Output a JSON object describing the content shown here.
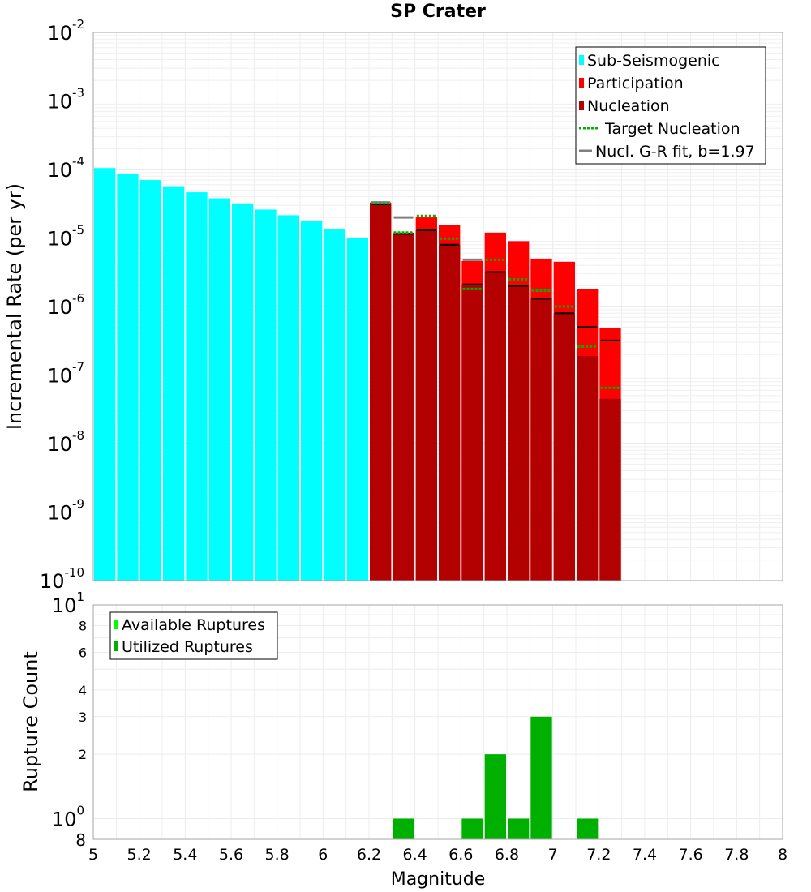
{
  "chart_data": [
    {
      "type": "bar",
      "title": "SP Crater",
      "xlabel": "",
      "ylabel": "Incremental Rate (per yr)",
      "yscale": "log",
      "xlim": [
        5,
        8
      ],
      "ylim": [
        1e-10,
        0.01
      ],
      "y_tick_bases": [
        "10",
        "10",
        "10",
        "10",
        "10",
        "10",
        "10",
        "10",
        "10"
      ],
      "y_tick_exponents": [
        "-2",
        "-3",
        "-4",
        "-5",
        "-6",
        "-7",
        "-8",
        "-9",
        "-10"
      ],
      "y_tick_values": [
        0.01,
        0.001,
        0.0001,
        1e-05,
        1e-06,
        1e-07,
        1e-08,
        1e-09,
        1e-10
      ],
      "bin_width": 0.1,
      "legend": [
        "Sub-Seismogenic",
        "Participation",
        "Nucleation",
        "Target Nucleation",
        "Nucl. G-R fit, b=1.97"
      ],
      "legend_position": "top-right",
      "colors": {
        "sub_seismogenic": "#00ffff",
        "participation": "#ff0000",
        "nucleation": "#b30000",
        "target_nucleation": "#00b000",
        "gr_fit": "#808080",
        "nucleation_marker": "#000000"
      },
      "series": [
        {
          "name": "Sub-Seismogenic",
          "x": [
            5.05,
            5.15,
            5.25,
            5.35,
            5.45,
            5.55,
            5.65,
            5.75,
            5.85,
            5.95,
            6.05,
            6.15
          ],
          "values": [
            0.000105,
            8.6e-05,
            7e-05,
            5.7e-05,
            4.65e-05,
            3.8e-05,
            3.2e-05,
            2.6e-05,
            2.15e-05,
            1.75e-05,
            1.35e-05,
            1e-05
          ]
        },
        {
          "name": "Participation",
          "x": [
            6.25,
            6.35,
            6.45,
            6.55,
            6.65,
            6.75,
            6.85,
            6.95,
            7.05,
            7.15,
            7.25
          ],
          "values": [
            3.3e-05,
            1.2e-05,
            2e-05,
            1.55e-05,
            4.6e-06,
            1.2e-05,
            9e-06,
            5e-06,
            4.5e-06,
            1.8e-06,
            4.8e-07
          ]
        },
        {
          "name": "Nucleation",
          "x": [
            6.25,
            6.35,
            6.45,
            6.55,
            6.65,
            6.75,
            6.85,
            6.95,
            7.05,
            7.15,
            7.25
          ],
          "values": [
            3.1e-05,
            1.15e-05,
            1.3e-05,
            8e-06,
            2.1e-06,
            3.2e-06,
            2e-06,
            1.3e-06,
            8e-07,
            1.9e-07,
            4.5e-08
          ]
        },
        {
          "name": "Nucleation marker",
          "x": [
            6.25,
            6.35,
            6.45,
            6.55,
            6.65,
            6.75,
            6.85,
            6.95,
            7.05,
            7.15,
            7.25
          ],
          "values": [
            3.1e-05,
            1.15e-05,
            1.3e-05,
            8e-06,
            2.1e-06,
            3.2e-06,
            2e-06,
            1.3e-06,
            8e-07,
            5e-07,
            3.2e-07
          ]
        },
        {
          "name": "Target Nucleation",
          "x": [
            6.25,
            6.35,
            6.45,
            6.55,
            6.65,
            6.75,
            6.85,
            6.95,
            7.05,
            7.15,
            7.25
          ],
          "values": [
            3.2e-05,
            1.2e-05,
            2.1e-05,
            9.8e-06,
            1.8e-06,
            4.8e-06,
            2.5e-06,
            1.7e-06,
            1e-06,
            2.6e-07,
            6.5e-08
          ]
        },
        {
          "name": "Nucl. G-R fit, b=1.97",
          "x": [
            6.25,
            6.35,
            6.65
          ],
          "values": [
            3.3e-05,
            2e-05,
            4.8e-06
          ]
        }
      ]
    },
    {
      "type": "bar",
      "title": "",
      "xlabel": "Magnitude",
      "ylabel": "Rupture Count",
      "yscale": "log",
      "xlim": [
        5,
        8
      ],
      "ylim": [
        0.8,
        10
      ],
      "x_tick_labels": [
        "5",
        "5.2",
        "5.4",
        "5.6",
        "5.8",
        "6",
        "6.2",
        "6.4",
        "6.6",
        "6.8",
        "7",
        "7.2",
        "7.4",
        "7.6",
        "7.8",
        "8"
      ],
      "y_major_ticks": [
        {
          "value": 10,
          "base": "10",
          "exp": "1"
        },
        {
          "value": 1,
          "base": "10",
          "exp": "0"
        }
      ],
      "y_minor_ticks": [
        {
          "value": 8,
          "label": "8"
        },
        {
          "value": 6,
          "label": "6"
        },
        {
          "value": 4,
          "label": "4"
        },
        {
          "value": 3,
          "label": "3"
        },
        {
          "value": 2,
          "label": "2"
        }
      ],
      "y_bottom_label": {
        "value": 0.8,
        "label": "8"
      },
      "bin_width": 0.1,
      "legend": [
        "Available Ruptures",
        "Utilized Ruptures"
      ],
      "legend_position": "top-left",
      "colors": {
        "available": "#00ff00",
        "utilized": "#00b000"
      },
      "series": [
        {
          "name": "Utilized Ruptures",
          "x": [
            6.35,
            6.65,
            6.75,
            6.85,
            6.95,
            7.15
          ],
          "values": [
            1,
            1,
            2,
            1,
            3,
            1
          ]
        }
      ]
    }
  ]
}
